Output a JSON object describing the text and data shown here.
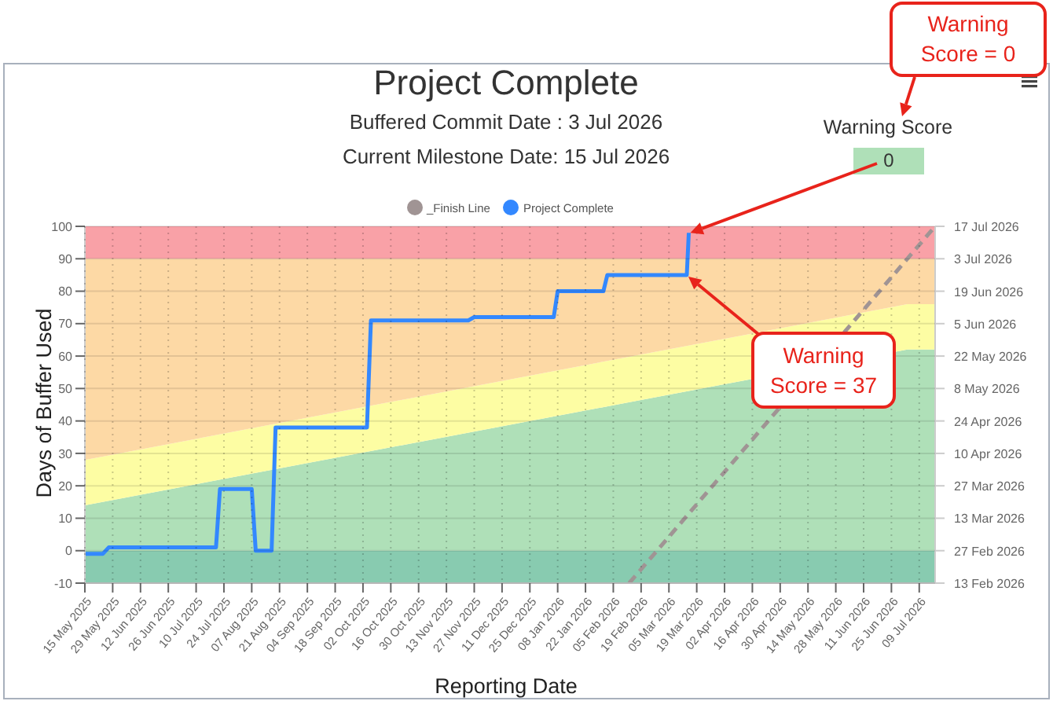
{
  "chart_data": {
    "type": "line",
    "title": "Project Complete",
    "subtitle": "Buffered Commit Date : 3 Jul 2026\nCurrent Milestone Date: 15 Jul 2026",
    "xlabel": "Reporting Date",
    "ylabel": "Days of Buffer Used",
    "annotations": [
      "Warning Score",
      {
        "text": "0",
        "x": "2026-03-15",
        "y": 98
      },
      "Warning Score = 0",
      "Warning Score = 37"
    ],
    "x": [
      "2025-05-15",
      "2026-07-03",
      "2026-07-17"
    ],
    "series": [
      {
        "type": "area",
        "color": "#afe0b8",
        "values": [
          14,
          62,
          62
        ]
      },
      {
        "type": "area",
        "color": "#fdfda3",
        "values": [
          14,
          14,
          14
        ]
      },
      {
        "type": "area",
        "color": "#fdd9a5",
        "values": [
          62,
          14,
          14
        ]
      },
      {
        "name": "_Finish Line",
        "line_style": "dashed",
        "color": "#a09494",
        "x": [
          "2026-02-13",
          "2026-07-17"
        ],
        "values": [
          -10,
          100
        ]
      },
      {
        "name": "Project Complete",
        "line_style": "solid",
        "color": "#3388ff",
        "x": [
          "2025-05-15",
          "2025-05-24",
          "2025-05-27",
          "2025-07-20",
          "2025-07-22",
          "2025-08-07",
          "2025-08-09",
          "2025-08-17",
          "2025-08-19",
          "2025-10-04",
          "2025-10-06",
          "2025-11-24",
          "2025-11-27",
          "2026-01-06",
          "2026-01-08",
          "2026-01-31",
          "2026-02-02",
          "2026-03-14",
          "2026-03-15"
        ],
        "values": [
          -1,
          -1,
          1,
          1,
          19,
          19,
          0,
          0,
          38,
          38,
          71,
          71,
          72,
          72,
          80,
          80,
          85,
          85,
          98
        ]
      }
    ],
    "stacked": true,
    "bands": [
      {
        "axis": "y",
        "from": -10,
        "to": 0,
        "color": "#88cbb0"
      },
      {
        "axis": "y",
        "from": 90,
        "to": 100,
        "color": "#f9a1a7"
      }
    ],
    "xlim": [
      "2025-05-15",
      "2026-07-17"
    ],
    "xticks": [
      {
        "value": "2025-05-15",
        "label": "15 May 2025"
      },
      {
        "value": "2025-05-29",
        "label": "29 May 2025"
      },
      {
        "value": "2025-06-12",
        "label": "12 Jun 2025"
      },
      {
        "value": "2025-06-26",
        "label": "26 Jun 2025"
      },
      {
        "value": "2025-07-10",
        "label": "10 Jul 2025"
      },
      {
        "value": "2025-07-24",
        "label": "24 Jul 2025"
      },
      {
        "value": "2025-08-07",
        "label": "07 Aug 2025"
      },
      {
        "value": "2025-08-21",
        "label": "21 Aug 2025"
      },
      {
        "value": "2025-09-04",
        "label": "04 Sep 2025"
      },
      {
        "value": "2025-09-18",
        "label": "18 Sep 2025"
      },
      {
        "value": "2025-10-02",
        "label": "02 Oct 2025"
      },
      {
        "value": "2025-10-16",
        "label": "16 Oct 2025"
      },
      {
        "value": "2025-10-30",
        "label": "30 Oct 2025"
      },
      {
        "value": "2025-11-13",
        "label": "13 Nov 2025"
      },
      {
        "value": "2025-11-27",
        "label": "27 Nov 2025"
      },
      {
        "value": "2025-12-11",
        "label": "11 Dec 2025"
      },
      {
        "value": "2025-12-25",
        "label": "25 Dec 2025"
      },
      {
        "value": "2026-01-08",
        "label": "08 Jan 2026"
      },
      {
        "value": "2026-01-22",
        "label": "22 Jan 2026"
      },
      {
        "value": "2026-02-05",
        "label": "05 Feb 2026"
      },
      {
        "value": "2026-02-19",
        "label": "19 Feb 2026"
      },
      {
        "value": "2026-03-05",
        "label": "05 Mar 2026"
      },
      {
        "value": "2026-03-19",
        "label": "19 Mar 2026"
      },
      {
        "value": "2026-04-02",
        "label": "02 Apr 2026"
      },
      {
        "value": "2026-04-16",
        "label": "16 Apr 2026"
      },
      {
        "value": "2026-04-30",
        "label": "30 Apr 2026"
      },
      {
        "value": "2026-05-14",
        "label": "14 May 2026"
      },
      {
        "value": "2026-05-28",
        "label": "28 May 2026"
      },
      {
        "value": "2026-06-11",
        "label": "11 Jun 2026"
      },
      {
        "value": "2026-06-25",
        "label": "25 Jun 2026"
      },
      {
        "value": "2026-07-09",
        "label": "09 Jul 2026"
      }
    ],
    "ylim": [
      -10,
      100
    ],
    "yticks": [
      -10,
      0,
      10,
      20,
      30,
      40,
      50,
      60,
      70,
      80,
      90,
      100
    ],
    "y2lim": [
      "2026-02-13",
      "2026-07-17"
    ],
    "y2ticks": [
      {
        "value": "2026-02-13",
        "label": "13 Feb 2026"
      },
      {
        "value": "2026-02-27",
        "label": "27 Feb 2026"
      },
      {
        "value": "2026-03-13",
        "label": "13 Mar 2026"
      },
      {
        "value": "2026-03-27",
        "label": "27 Mar 2026"
      },
      {
        "value": "2026-04-10",
        "label": "10 Apr 2026"
      },
      {
        "value": "2026-04-24",
        "label": "24 Apr 2026"
      },
      {
        "value": "2026-05-08",
        "label": "8 May 2026"
      },
      {
        "value": "2026-05-22",
        "label": "22 May 2026"
      },
      {
        "value": "2026-06-05",
        "label": "5 Jun 2026"
      },
      {
        "value": "2026-06-19",
        "label": "19 Jun 2026"
      },
      {
        "value": "2026-07-03",
        "label": "3 Jul 2026"
      },
      {
        "value": "2026-07-17",
        "label": "17 Jul 2026"
      }
    ],
    "grid": true,
    "legend": "top",
    "marker": "none"
  }
}
